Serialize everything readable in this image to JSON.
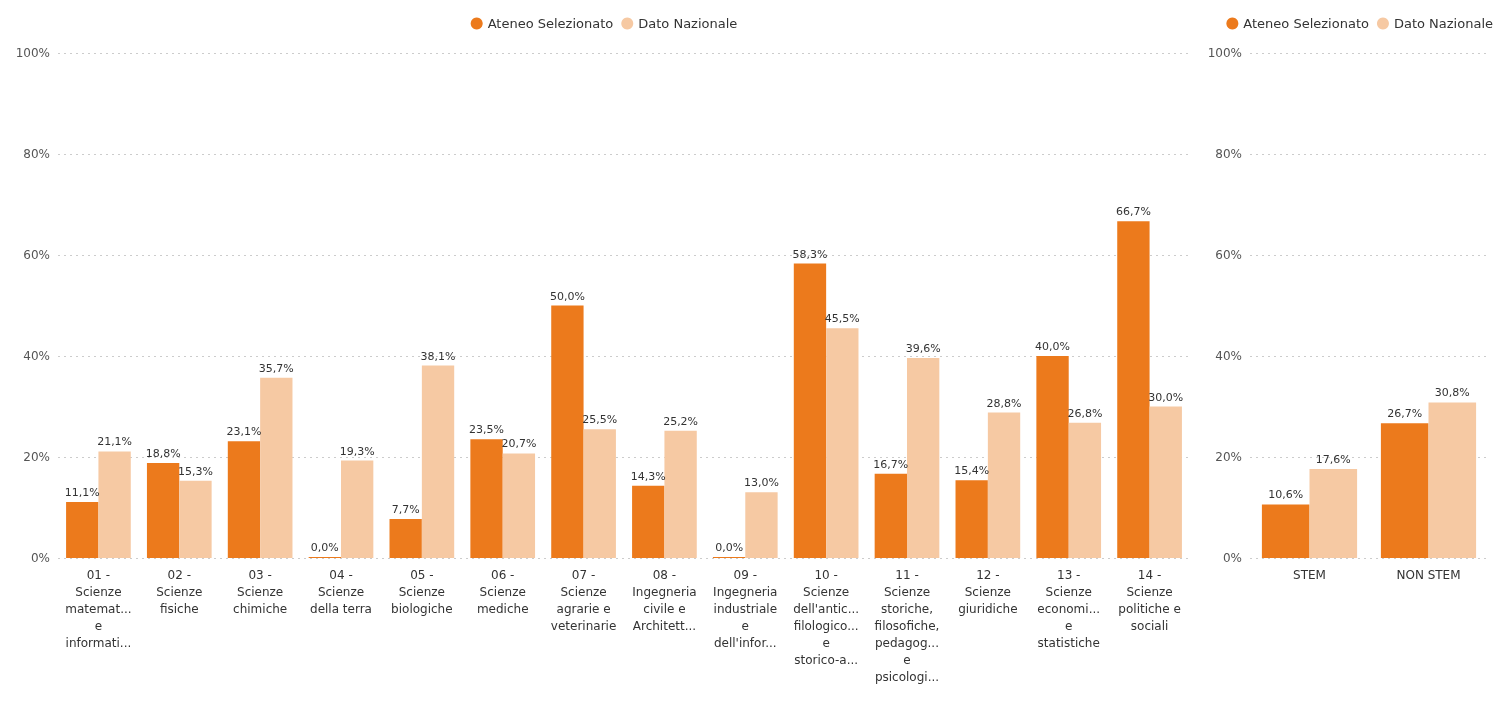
{
  "chart_data": [
    {
      "type": "bar",
      "categories": [
        "01 -\nScienze\nmatemat...\ne\ninformati...",
        "02 -\nScienze\nfisiche",
        "03 -\nScienze\nchimiche",
        "04 -\nScienze\ndella terra",
        "05 -\nScienze\nbiologiche",
        "06 -\nScienze\nmediche",
        "07 -\nScienze\nagrarie e\nveterinarie",
        "08 -\nIngegneria\ncivile e\nArchitett...",
        "09 -\nIngegneria\nindustriale\ne\ndell'infor...",
        "10 -\nScienze\ndell'antic...\nfilologico...\ne\nstorico-a...",
        "11 -\nScienze\nstoriche,\nfilosofiche,\npedagog...\ne\npsicologi...",
        "12 -\nScienze\ngiuridiche",
        "13 -\nScienze\neconomi...\ne\nstatistiche",
        "14 -\nScienze\npolitiche e\nsociali"
      ],
      "series": [
        {
          "name": "Ateneo Selezionato",
          "color": "#ec7a1c",
          "values": [
            11.1,
            18.8,
            23.1,
            0,
            7.7,
            23.5,
            50,
            14.3,
            0,
            58.3,
            16.7,
            15.4,
            40,
            66.7
          ],
          "value_labels": [
            "11,1%",
            "18,8%",
            "23,1%",
            "0,0%",
            "7,7%",
            "23,5%",
            "50,0%",
            "14,3%",
            "0,0%",
            "58,3%",
            "16,7%",
            "15,4%",
            "40,0%",
            "66,7%"
          ]
        },
        {
          "name": "Dato Nazionale",
          "color": "#f6c9a3",
          "values": [
            21.1,
            15.3,
            35.7,
            19.3,
            38.1,
            20.7,
            25.5,
            25.2,
            13,
            45.5,
            39.6,
            28.8,
            26.8,
            30
          ],
          "value_labels": [
            "21,1%",
            "15,3%",
            "35,7%",
            "19,3%",
            "38,1%",
            "20,7%",
            "25,5%",
            "25,2%",
            "13,0%",
            "45,5%",
            "39,6%",
            "28,8%",
            "26,8%",
            "30,0%"
          ]
        }
      ],
      "ylim": [
        0,
        100
      ],
      "yticks": [
        {
          "value": 0,
          "label": "0%"
        },
        {
          "value": 20,
          "label": "20%"
        },
        {
          "value": 40,
          "label": "40%"
        },
        {
          "value": 60,
          "label": "60%"
        },
        {
          "value": 80,
          "label": "80%"
        },
        {
          "value": 100,
          "label": "100%"
        }
      ],
      "grid": "y",
      "legend": "top"
    },
    {
      "type": "bar",
      "categories": [
        "STEM",
        "NON STEM"
      ],
      "series": [
        {
          "name": "Ateneo Selezionato",
          "color": "#ec7a1c",
          "values": [
            10.6,
            26.7
          ],
          "value_labels": [
            "10,6%",
            "26,7%"
          ]
        },
        {
          "name": "Dato Nazionale",
          "color": "#f6c9a3",
          "values": [
            17.6,
            30.8
          ],
          "value_labels": [
            "17,6%",
            "30,8%"
          ]
        }
      ],
      "ylim": [
        0,
        100
      ],
      "yticks": [
        {
          "value": 0,
          "label": "0%"
        },
        {
          "value": 20,
          "label": "20%"
        },
        {
          "value": 40,
          "label": "40%"
        },
        {
          "value": 60,
          "label": "60%"
        },
        {
          "value": 80,
          "label": "80%"
        },
        {
          "value": 100,
          "label": "100%"
        }
      ],
      "grid": "y",
      "legend": "top right"
    }
  ]
}
